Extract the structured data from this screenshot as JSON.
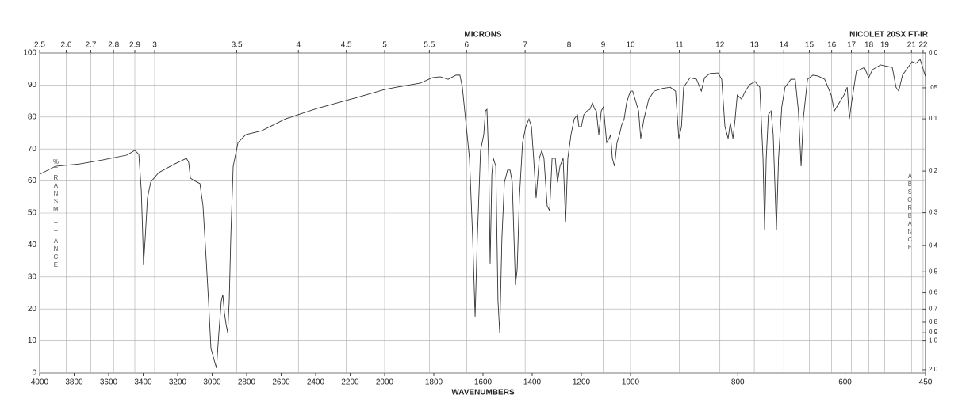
{
  "chart_data": {
    "type": "line",
    "title": "NICOLET 20SX FT-IR",
    "x_label": "WAVENUMBERS",
    "x2_label": "MICRONS",
    "y_label": "%TRANSMITTANCE",
    "y2_label": "ABSORBANCE",
    "color": "#333333",
    "grid": true,
    "xlim": [
      4000,
      450
    ],
    "xticks": [
      4000,
      3800,
      3600,
      3400,
      3200,
      3000,
      2800,
      2600,
      2400,
      2200,
      2000,
      1800,
      1600,
      1400,
      1200,
      1000,
      800,
      600,
      450
    ],
    "x2ticks": [
      2.5,
      2.6,
      2.7,
      2.8,
      2.9,
      3,
      3.5,
      4,
      4.5,
      5,
      5.5,
      6,
      7,
      8,
      9,
      10,
      11,
      12,
      13,
      14,
      15,
      16,
      17,
      18,
      19,
      21,
      22
    ],
    "ylim": [
      0,
      100
    ],
    "yticks": [
      0,
      10,
      20,
      30,
      40,
      50,
      60,
      70,
      80,
      90,
      100
    ],
    "y2ticks": [
      {
        "value": 0,
        "label": "0.0"
      },
      {
        "value": 0.05,
        "label": ".05"
      },
      0.1,
      0.2,
      0.3,
      0.4,
      0.5,
      0.6,
      0.7,
      0.8,
      0.9,
      {
        "value": 1,
        "label": "1.0"
      },
      {
        "value": 2,
        "label": "2.0"
      }
    ],
    "x": [
      4000,
      3908,
      3770,
      3632,
      3494,
      3448,
      3425,
      3411,
      3402,
      3398,
      3388,
      3375,
      3356,
      3310,
      3218,
      3149,
      3136,
      3126,
      3103,
      3071,
      3053,
      3034,
      3021,
      3007,
      2988,
      2975,
      2961,
      2947,
      2938,
      2929,
      2919,
      2910,
      2901,
      2892,
      2878,
      2850,
      2805,
      2713,
      2575,
      2391,
      2161,
      2000,
      1952,
      1855,
      1806,
      1774,
      1742,
      1710,
      1694,
      1684,
      1671,
      1655,
      1642,
      1632,
      1623,
      1610,
      1597,
      1590,
      1584,
      1577,
      1571,
      1564,
      1558,
      1548,
      1539,
      1532,
      1523,
      1513,
      1500,
      1490,
      1481,
      1468,
      1461,
      1452,
      1439,
      1426,
      1413,
      1403,
      1394,
      1384,
      1371,
      1361,
      1352,
      1339,
      1329,
      1319,
      1306,
      1297,
      1287,
      1274,
      1264,
      1255,
      1242,
      1229,
      1216,
      1210,
      1200,
      1190,
      1177,
      1165,
      1155,
      1145,
      1139,
      1129,
      1119,
      1110,
      1103,
      1097,
      1087,
      1081,
      1074,
      1065,
      1055,
      1045,
      1036,
      1026,
      1016,
      1006,
      1000,
      996,
      985,
      981,
      975,
      966,
      956,
      941,
      926,
      916,
      910,
      905,
      901,
      889,
      877,
      868,
      862,
      852,
      837,
      830,
      824,
      818,
      814,
      809,
      805,
      801,
      793,
      786,
      778,
      768,
      759,
      753,
      750,
      747,
      743,
      738,
      734,
      728,
      724,
      718,
      712,
      701,
      693,
      687,
      682,
      678,
      670,
      660,
      650,
      638,
      626,
      620,
      611,
      602,
      596,
      592,
      588,
      579,
      564,
      556,
      549,
      534,
      512,
      505,
      500,
      493,
      475,
      468,
      460,
      450
    ],
    "values": [
      62.1,
      64.6,
      65.3,
      66.6,
      68.1,
      69.6,
      68.3,
      57.2,
      42.3,
      33.7,
      42.3,
      54.7,
      59.7,
      62.6,
      65.3,
      67.1,
      65.8,
      60.9,
      60.1,
      59.2,
      52.2,
      34.9,
      22.5,
      7.7,
      4.0,
      1.5,
      12.6,
      22.5,
      24.5,
      18.8,
      15.1,
      12.6,
      22.5,
      42.3,
      64.6,
      72.0,
      74.5,
      75.7,
      79.4,
      82.7,
      86.1,
      88.6,
      89.3,
      90.6,
      92.3,
      92.6,
      91.8,
      93.1,
      93.1,
      89.3,
      79.4,
      67.1,
      42.3,
      17.6,
      42.3,
      69.5,
      74.5,
      81.9,
      82.4,
      67.1,
      34.2,
      62.1,
      67.1,
      64.6,
      22.5,
      12.6,
      42.3,
      59.6,
      63.4,
      63.4,
      59.6,
      27.5,
      32.4,
      54.7,
      72.0,
      77.0,
      79.4,
      77.0,
      67.1,
      54.7,
      67.1,
      69.5,
      67.1,
      52.2,
      50.7,
      67.1,
      67.1,
      59.6,
      64.6,
      67.1,
      47.3,
      67.1,
      74.5,
      79.4,
      80.7,
      77.0,
      77.0,
      80.7,
      81.9,
      82.4,
      84.4,
      82.4,
      81.9,
      74.5,
      81.9,
      83.2,
      77.0,
      72.0,
      73.3,
      74.5,
      67.1,
      64.6,
      72.0,
      74.5,
      77.5,
      79.4,
      84.4,
      86.9,
      88.1,
      88.1,
      81.9,
      73.3,
      79.4,
      85.6,
      88.1,
      88.9,
      89.3,
      88.1,
      73.3,
      77.0,
      89.3,
      92.3,
      91.8,
      88.1,
      92.3,
      93.6,
      93.8,
      91.8,
      77.0,
      73.3,
      78.2,
      73.3,
      79.4,
      86.9,
      85.6,
      88.1,
      90.1,
      91.1,
      89.3,
      67.1,
      44.8,
      67.1,
      80.7,
      81.9,
      74.5,
      44.8,
      67.1,
      83.2,
      89.3,
      91.8,
      91.8,
      81.9,
      64.6,
      79.4,
      91.8,
      93.1,
      92.8,
      91.8,
      86.9,
      81.9,
      84.4,
      86.9,
      89.3,
      79.4,
      84.4,
      94.3,
      95.5,
      92.3,
      94.8,
      96.3,
      95.5,
      89.3,
      88.1,
      93.1,
      97.3,
      96.8,
      98.0,
      92.6
    ]
  }
}
